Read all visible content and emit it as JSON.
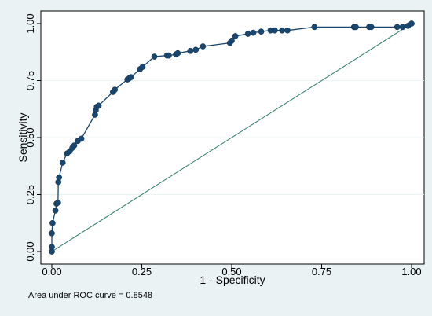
{
  "chart_data": {
    "type": "line",
    "xlabel": "1 - Specificity",
    "ylabel": "Sensitivity",
    "xlim": [
      0,
      1
    ],
    "ylim": [
      0,
      1
    ],
    "xticks": [
      "0.00",
      "0.25",
      "0.50",
      "0.75",
      "1.00"
    ],
    "yticks": [
      "0.00",
      "0.25",
      "0.50",
      "0.75",
      "1.00"
    ],
    "grid": true,
    "note": "Area under ROC curve = 0.8548",
    "colors": {
      "curve": "#1a476f",
      "reference": "#2d7a6a",
      "plot_bg": "#ffffff",
      "outer_bg": "#eaf2f3"
    },
    "reference_line": {
      "x": [
        0,
        1
      ],
      "y": [
        0,
        1
      ]
    },
    "series": [
      {
        "x": [
          0.0,
          0.0,
          0.0,
          0.002,
          0.01,
          0.013,
          0.017,
          0.018,
          0.02,
          0.03,
          0.042,
          0.05,
          0.057,
          0.062,
          0.072,
          0.082,
          0.12,
          0.122,
          0.125,
          0.13,
          0.17,
          0.175,
          0.21,
          0.215,
          0.22,
          0.245,
          0.252,
          0.285,
          0.32,
          0.325,
          0.345,
          0.35,
          0.385,
          0.4,
          0.42,
          0.495,
          0.5,
          0.51,
          0.545,
          0.56,
          0.582,
          0.608,
          0.62,
          0.64,
          0.655,
          0.73,
          0.84,
          0.842,
          0.845,
          0.882,
          0.888,
          0.96,
          0.975,
          0.99,
          1.0
        ],
        "y": [
          0.0,
          0.02,
          0.08,
          0.125,
          0.18,
          0.21,
          0.215,
          0.305,
          0.325,
          0.39,
          0.43,
          0.44,
          0.455,
          0.465,
          0.485,
          0.495,
          0.6,
          0.62,
          0.635,
          0.64,
          0.7,
          0.71,
          0.755,
          0.76,
          0.765,
          0.8,
          0.81,
          0.855,
          0.86,
          0.86,
          0.865,
          0.87,
          0.88,
          0.885,
          0.9,
          0.915,
          0.925,
          0.945,
          0.955,
          0.96,
          0.965,
          0.97,
          0.97,
          0.97,
          0.97,
          0.985,
          0.985,
          0.985,
          0.985,
          0.985,
          0.985,
          0.985,
          0.985,
          0.99,
          1.0
        ]
      }
    ]
  }
}
